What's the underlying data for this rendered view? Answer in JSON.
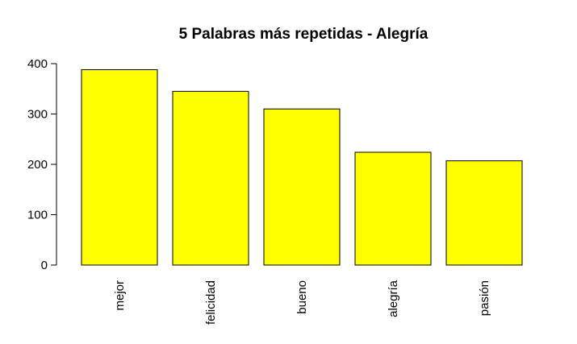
{
  "chart_data": {
    "type": "bar",
    "title": "5 Palabras más repetidas - Alegría",
    "xlabel": "",
    "ylabel": "",
    "categories": [
      "mejor",
      "felicidad",
      "bueno",
      "alegría",
      "pasión"
    ],
    "values": [
      388,
      345,
      310,
      224,
      207
    ],
    "ylim": [
      0,
      400
    ],
    "yticks": [
      0,
      100,
      200,
      300,
      400
    ],
    "grid": false,
    "legend": "none",
    "bar_color": "#ffff00",
    "bar_stroke": "#000000"
  }
}
